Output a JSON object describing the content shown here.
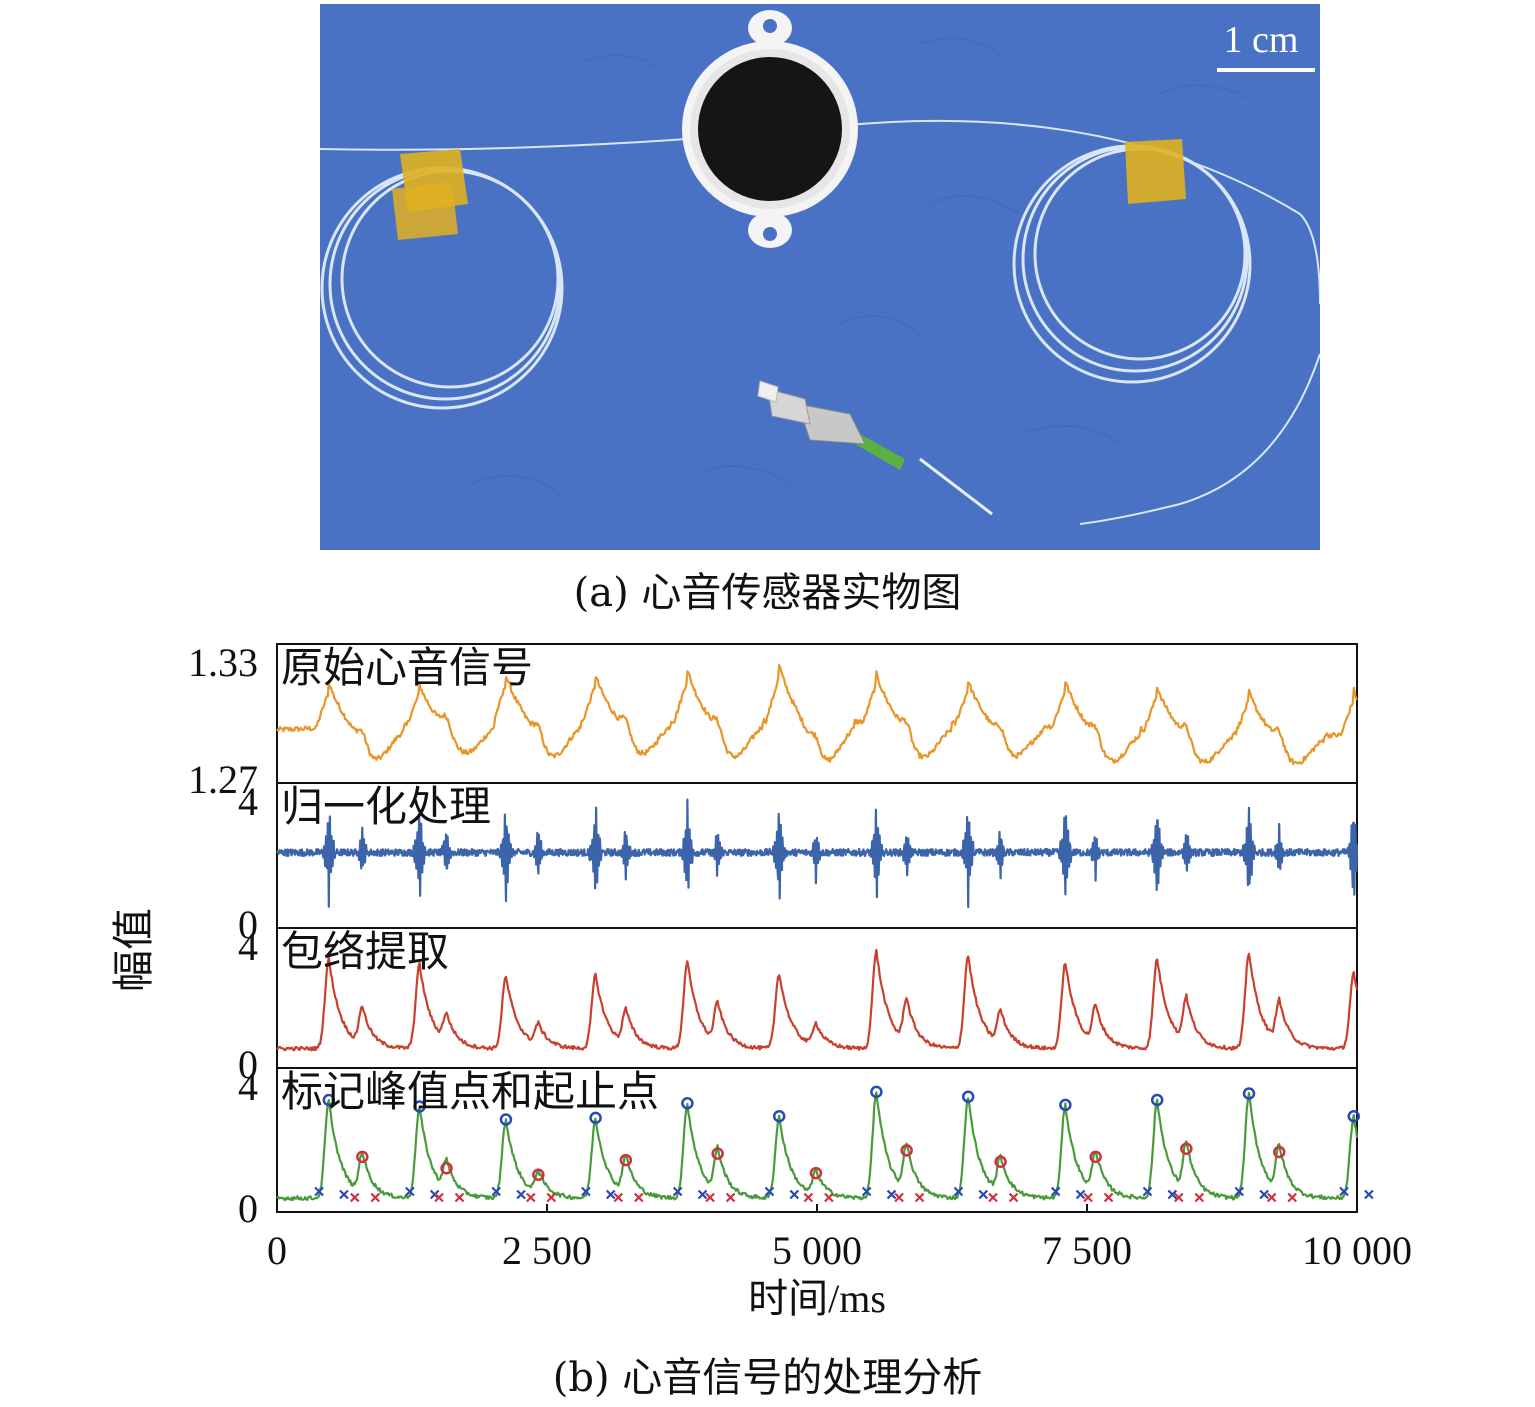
{
  "photo": {
    "scale_bar_label": "1 cm",
    "colors": {
      "background": "#4a72c4",
      "fiber": "#d8e6f5",
      "tape": "#e0b020",
      "diaphragm": "#151515",
      "housing": "#f4f4f4",
      "connector_tube": "#5ab040"
    }
  },
  "caption_a": "(a) 心音传感器实物图",
  "caption_b": "(b) 心音信号的处理分析",
  "chart_data": {
    "type": "line",
    "xlabel": "时间/ms",
    "ylabel": "幅值",
    "xlim": [
      0,
      10000
    ],
    "x_ticks": [
      0,
      2500,
      5000,
      7500,
      10000
    ],
    "x_tick_labels": [
      "0",
      "2 500",
      "5 000",
      "7 500",
      "10 000"
    ],
    "beats": {
      "s1_times_ms": [
        480,
        1320,
        2120,
        2950,
        3800,
        4650,
        5550,
        6400,
        7300,
        8150,
        9000,
        9970
      ],
      "s2_times_ms": [
        790,
        1570,
        2420,
        3230,
        4080,
        4990,
        5830,
        6700,
        7580,
        8420,
        9280
      ]
    },
    "panels": [
      {
        "title": "原始心音信号",
        "color": "#e8962a",
        "ylim": [
          1.27,
          1.33
        ],
        "y_ticks": [
          1.33,
          1.27
        ],
        "y_tick_labels": [
          "1.33",
          "1.27"
        ],
        "signal": "raw"
      },
      {
        "title": "归一化处理",
        "color": "#3c64aa",
        "ylim": [
          0,
          4
        ],
        "y_ticks": [
          4,
          0
        ],
        "y_tick_labels": [
          "4",
          "0"
        ],
        "signal": "normalized"
      },
      {
        "title": "包络提取",
        "color": "#c8402e",
        "ylim": [
          0,
          4
        ],
        "y_ticks": [
          4,
          0
        ],
        "y_tick_labels": [
          "4",
          "0"
        ],
        "signal": "envelope"
      },
      {
        "title": "标记峰值点和起止点",
        "color": "#4a9a3a",
        "ylim": [
          0,
          4
        ],
        "y_ticks": [
          4,
          0
        ],
        "y_tick_labels": [
          "4",
          "0"
        ],
        "signal": "marked",
        "s1_peak_values": [
          3.2,
          3.0,
          2.6,
          2.65,
          3.1,
          2.7,
          3.45,
          3.3,
          3.05,
          3.2,
          3.4,
          2.7
        ],
        "s2_peak_values": [
          1.45,
          1.1,
          0.9,
          1.35,
          1.55,
          0.95,
          1.65,
          1.3,
          1.45,
          1.7,
          1.6
        ],
        "s1_peak_marker_color": "#2848b8",
        "s2_peak_marker_color": "#d03040",
        "onset_marker_color": "#2848b8",
        "offset_marker_color": "#d03040"
      }
    ]
  }
}
